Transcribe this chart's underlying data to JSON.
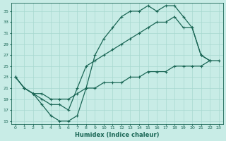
{
  "xlabel": "Humidex (Indice chaleur)",
  "bg_color": "#c8ece6",
  "grid_color": "#a8d8d0",
  "line_color": "#1a6655",
  "xlim": [
    -0.5,
    23.5
  ],
  "ylim": [
    14.5,
    36.5
  ],
  "xticks": [
    0,
    1,
    2,
    3,
    4,
    5,
    6,
    7,
    8,
    9,
    10,
    11,
    12,
    13,
    14,
    15,
    16,
    17,
    18,
    19,
    20,
    21,
    22,
    23
  ],
  "yticks": [
    15,
    17,
    19,
    21,
    23,
    25,
    27,
    29,
    31,
    33,
    35
  ],
  "line1_x": [
    0,
    1,
    2,
    3,
    4,
    5,
    6,
    7,
    8,
    9,
    10,
    11,
    12,
    13,
    14,
    15,
    16,
    17,
    18,
    19,
    20,
    21,
    22
  ],
  "line1_y": [
    23,
    21,
    20,
    18,
    16,
    15,
    15,
    16,
    21,
    27,
    30,
    32,
    34,
    35,
    35,
    36,
    35,
    36,
    36,
    34,
    32,
    27,
    26
  ],
  "line2_x": [
    0,
    1,
    2,
    3,
    4,
    5,
    6,
    7,
    8,
    9,
    10,
    11,
    12,
    13,
    14,
    15,
    16,
    17,
    18,
    19,
    20,
    21,
    22
  ],
  "line2_y": [
    23,
    21,
    20,
    19,
    18,
    18,
    17,
    21,
    25,
    26,
    27,
    28,
    29,
    30,
    31,
    32,
    33,
    33,
    34,
    32,
    32,
    27,
    26
  ],
  "line3_x": [
    0,
    1,
    2,
    3,
    4,
    5,
    6,
    7,
    8,
    9,
    10,
    11,
    12,
    13,
    14,
    15,
    16,
    17,
    18,
    19,
    20,
    21,
    22,
    23
  ],
  "line3_y": [
    23,
    21,
    20,
    20,
    19,
    19,
    19,
    20,
    21,
    21,
    22,
    22,
    22,
    23,
    23,
    24,
    24,
    24,
    25,
    25,
    25,
    25,
    26,
    26
  ]
}
